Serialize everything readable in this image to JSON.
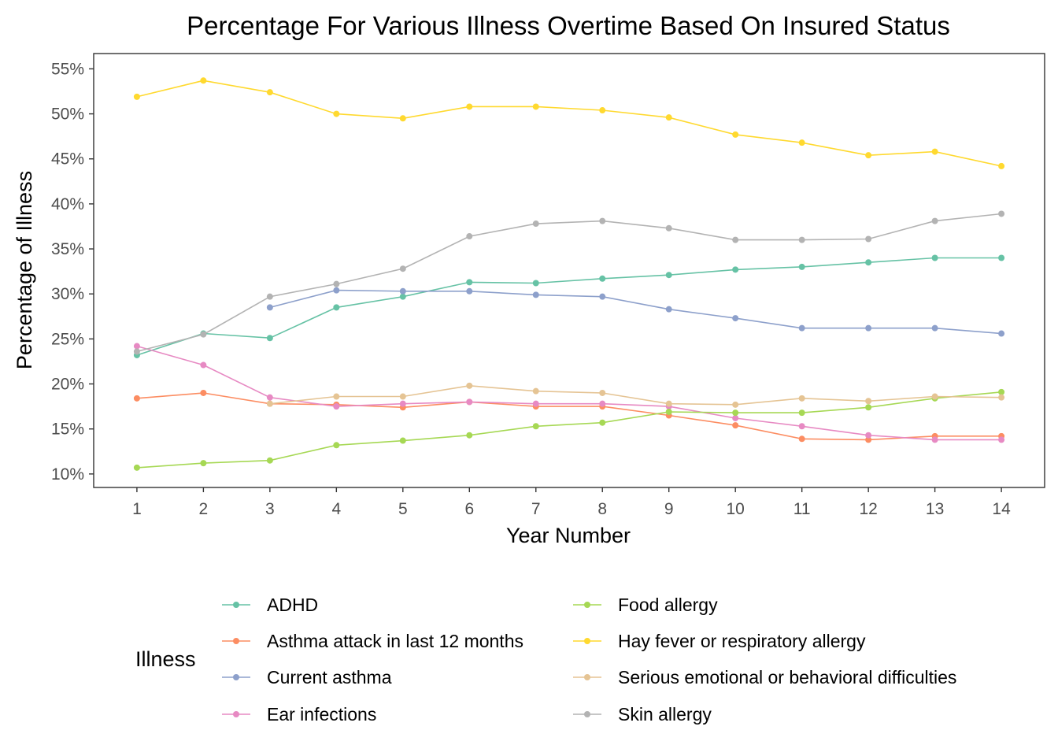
{
  "chart_data": {
    "type": "line",
    "title": "Percentage For Various Illness Overtime Based On Insured Status",
    "xlabel": "Year Number",
    "ylabel": "Percentage of Illness",
    "x": [
      1,
      2,
      3,
      4,
      5,
      6,
      7,
      8,
      9,
      10,
      11,
      12,
      13,
      14
    ],
    "x_tick_labels": [
      "1",
      "2",
      "3",
      "4",
      "5",
      "6",
      "7",
      "8",
      "9",
      "10",
      "11",
      "12",
      "13",
      "14"
    ],
    "y_ticks": [
      10,
      15,
      20,
      25,
      30,
      35,
      40,
      45,
      50,
      55
    ],
    "y_tick_labels": [
      "10%",
      "15%",
      "20%",
      "25%",
      "30%",
      "35%",
      "40%",
      "45%",
      "50%",
      "55%"
    ],
    "xlim": [
      0.35,
      14.65
    ],
    "ylim": [
      8.5,
      56.7
    ],
    "grid": false,
    "legend_title": "Illness",
    "legend_position": "bottom",
    "series": [
      {
        "name": "ADHD",
        "color": "#66c2a5",
        "values": [
          23.2,
          25.6,
          25.1,
          28.5,
          29.7,
          31.3,
          31.2,
          31.7,
          32.1,
          32.7,
          33.0,
          33.5,
          34.0,
          34.0
        ]
      },
      {
        "name": "Asthma attack in last 12 months",
        "color": "#fc8d62",
        "values": [
          18.4,
          19.0,
          17.8,
          17.7,
          17.4,
          18.0,
          17.5,
          17.5,
          16.5,
          15.4,
          13.9,
          13.8,
          14.2,
          14.2
        ]
      },
      {
        "name": "Current asthma",
        "color": "#8da0cb",
        "values": [
          null,
          null,
          28.5,
          30.4,
          30.3,
          30.3,
          29.9,
          29.7,
          28.3,
          27.3,
          26.2,
          26.2,
          26.2,
          25.6
        ]
      },
      {
        "name": "Ear infections",
        "color": "#e78ac3",
        "values": [
          24.2,
          22.1,
          18.5,
          17.5,
          17.8,
          18.0,
          17.8,
          17.8,
          17.5,
          16.2,
          15.3,
          14.3,
          13.8,
          13.8
        ]
      },
      {
        "name": "Food allergy",
        "color": "#a6d854",
        "values": [
          10.7,
          11.2,
          11.5,
          13.2,
          13.7,
          14.3,
          15.3,
          15.7,
          16.9,
          16.8,
          16.8,
          17.4,
          18.4,
          19.1
        ]
      },
      {
        "name": "Hay fever or respiratory allergy",
        "color": "#ffd92f",
        "values": [
          51.9,
          53.7,
          52.4,
          50.0,
          49.5,
          50.8,
          50.8,
          50.4,
          49.6,
          47.7,
          46.8,
          45.4,
          45.8,
          44.2
        ]
      },
      {
        "name": "Serious emotional or behavioral difficulties",
        "color": "#e5c494",
        "values": [
          null,
          null,
          17.8,
          18.6,
          18.6,
          19.8,
          19.2,
          19.0,
          17.8,
          17.7,
          18.4,
          18.1,
          18.6,
          18.5
        ]
      },
      {
        "name": "Skin allergy",
        "color": "#b3b3b3",
        "values": [
          23.6,
          25.5,
          29.7,
          31.1,
          32.8,
          36.4,
          37.8,
          38.1,
          37.3,
          36.0,
          36.0,
          36.1,
          38.1,
          38.9
        ]
      }
    ]
  }
}
